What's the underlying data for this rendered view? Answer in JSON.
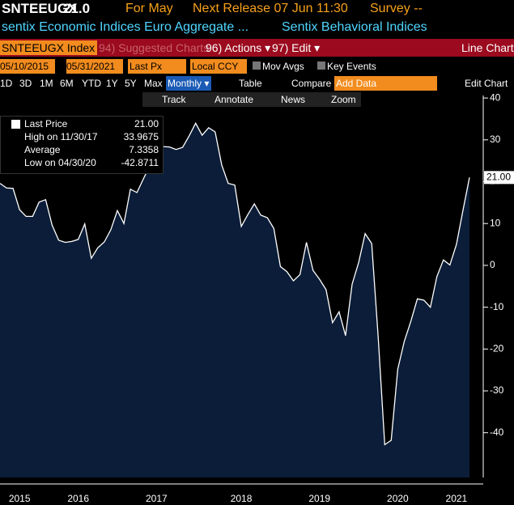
{
  "header": {
    "ticker": "SNTEEUGX",
    "last": "21.0",
    "period": "For May",
    "release": "Next Release 07 Jun 11:30",
    "survey": "Survey --",
    "description": "sentix Economic Indices Euro Aggregate ...",
    "group": "Sentix Behavioral Indices"
  },
  "toolbar": {
    "security": "SNTEEUGX Index",
    "suggested": "94) Suggested Charts",
    "actions": "96) Actions ▾",
    "edit": "97) Edit ▾",
    "chart_type": "Line Chart"
  },
  "settings": {
    "start": "05/10/2015",
    "end": "05/31/2021",
    "field": "Last Px",
    "currency": "Local CCY",
    "mov_avgs": "Mov Avgs",
    "key_events": "Key Events"
  },
  "ranges": [
    "1D",
    "3D",
    "1M",
    "6M",
    "YTD",
    "1Y",
    "5Y",
    "Max"
  ],
  "controls": {
    "frequency": "Monthly ▾",
    "table": "Table",
    "compare": "Compare ▾",
    "add": "Add Data",
    "edit_chart": "Edit Chart"
  },
  "tools": [
    "Track",
    "Annotate",
    "News",
    "Zoom"
  ],
  "legend": [
    {
      "label": "Last Price",
      "value": "21.00"
    },
    {
      "label": "High on 11/30/17",
      "value": "33.9675"
    },
    {
      "label": "Average",
      "value": "7.3358"
    },
    {
      "label": "Low on 04/30/20",
      "value": "-42.8711"
    }
  ],
  "chart_data": {
    "type": "area",
    "categories": [
      null,
      null,
      null,
      "2015",
      null,
      null,
      null,
      null,
      null,
      null,
      null,
      null,
      "2016",
      null,
      null,
      null,
      null,
      null,
      null,
      null,
      null,
      null,
      null,
      null,
      "2017",
      null,
      null,
      null,
      null,
      null,
      null,
      null,
      null,
      null,
      null,
      null,
      null,
      "2018",
      null,
      null,
      null,
      null,
      null,
      null,
      null,
      null,
      null,
      null,
      null,
      "2019",
      null,
      null,
      null,
      null,
      null,
      null,
      null,
      null,
      null,
      null,
      null,
      "2020",
      null,
      null,
      null,
      null,
      null,
      null,
      null,
      null,
      "2021",
      null,
      null
    ],
    "series": [
      {
        "name": "Last Price",
        "color": "#ffffff",
        "fill": "#0b1d38",
        "values": [
          19.6,
          18.5,
          18.4,
          13.3,
          11.7,
          11.7,
          15.1,
          15.7,
          9.6,
          6.0,
          5.5,
          5.7,
          6.2,
          9.9,
          1.7,
          4.2,
          5.6,
          8.5,
          13.1,
          10.0,
          18.2,
          17.4,
          20.7,
          23.9,
          27.4,
          28.4,
          28.3,
          27.7,
          28.2,
          30.9,
          33.9675,
          31.1,
          32.9,
          31.9,
          24.0,
          19.6,
          19.2,
          9.3,
          12.1,
          14.7,
          12.0,
          11.4,
          8.8,
          -0.3,
          -1.5,
          -3.7,
          -2.2,
          5.5,
          -1.2,
          -3.3,
          -5.8,
          -13.7,
          -11.1,
          -16.8,
          -4.5,
          0.7,
          7.6,
          5.2,
          -17.1,
          -42.8711,
          -41.8,
          -24.8,
          -18.2,
          -13.4,
          -8.0,
          -8.3,
          -10.0,
          -2.7,
          1.3,
          0.1,
          5.0,
          13.1,
          21.0
        ]
      }
    ],
    "ylim": [
      -50.7,
      40.6
    ],
    "yticks": [
      40,
      30,
      20,
      10,
      0,
      -10,
      -20,
      -30,
      -40
    ]
  }
}
